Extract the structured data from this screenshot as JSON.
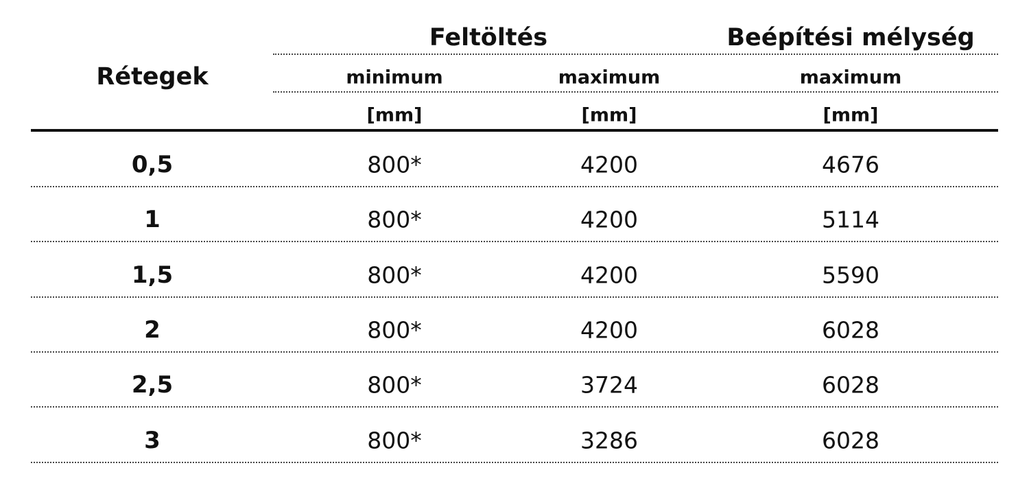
{
  "table": {
    "header": {
      "row_label": "Rétegek",
      "groups": [
        "Feltöltés",
        "Beépítési mélység"
      ],
      "columns": [
        "minimum",
        "maximum",
        "maximum"
      ],
      "units": [
        "[mm]",
        "[mm]",
        "[mm]"
      ]
    },
    "rows": [
      [
        "0,5",
        "800*",
        "4200",
        "4676"
      ],
      [
        "1",
        "800*",
        "4200",
        "5114"
      ],
      [
        "1,5",
        "800*",
        "4200",
        "5590"
      ],
      [
        "2",
        "800*",
        "4200",
        "6028"
      ],
      [
        "2,5",
        "800*",
        "3724",
        "6028"
      ],
      [
        "3",
        "800*",
        "3286",
        "6028"
      ]
    ]
  }
}
